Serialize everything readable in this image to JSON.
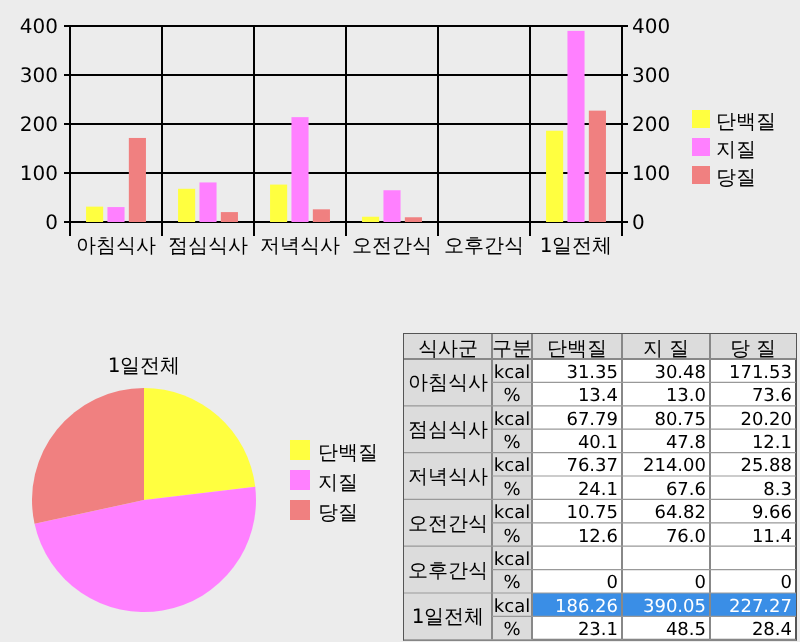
{
  "chart_data": [
    {
      "type": "bar",
      "categories": [
        "아침식사",
        "점심식사",
        "저녁식사",
        "오전간식",
        "오후간식",
        "1일전체"
      ],
      "series": [
        {
          "name": "단백질",
          "color": "#ffff40",
          "values": [
            31.35,
            67.79,
            76.37,
            10.75,
            null,
            186.26
          ]
        },
        {
          "name": "지질",
          "color": "#ff80ff",
          "values": [
            30.48,
            80.75,
            214.0,
            64.82,
            null,
            390.05
          ]
        },
        {
          "name": "당질",
          "color": "#f08080",
          "values": [
            171.53,
            20.2,
            25.88,
            9.66,
            null,
            227.27
          ]
        }
      ],
      "ylim": [
        0,
        400
      ],
      "yticks": [
        0,
        100,
        200,
        300,
        400
      ],
      "y2lim": [
        0,
        400
      ],
      "y2ticks": [
        0,
        100,
        200,
        300,
        400
      ],
      "grid": true,
      "legend": "right"
    },
    {
      "type": "pie",
      "title": "1일전체",
      "categories": [
        "단백질",
        "지질",
        "당질"
      ],
      "values": [
        23.1,
        48.5,
        28.4
      ],
      "colors": [
        "#ffff40",
        "#ff80ff",
        "#f08080"
      ],
      "legend": "right"
    },
    {
      "type": "other",
      "categories": [
        "식사군",
        "구분",
        "단백질",
        "지 질",
        "당 질"
      ],
      "y_categories": [
        "아침식사",
        "점심식사",
        "저녁식사",
        "오전간식",
        "오후간식",
        "1일전체"
      ],
      "cell_labels": [
        [
          "kcal",
          "31.35",
          "30.48",
          "171.53"
        ],
        [
          "%",
          "13.4",
          "13.0",
          "73.6"
        ],
        [
          "kcal",
          "67.79",
          "80.75",
          "20.20"
        ],
        [
          "%",
          "40.1",
          "47.8",
          "12.1"
        ],
        [
          "kcal",
          "76.37",
          "214.00",
          "25.88"
        ],
        [
          "%",
          "24.1",
          "67.6",
          "8.3"
        ],
        [
          "kcal",
          "10.75",
          "64.82",
          "9.66"
        ],
        [
          "%",
          "12.6",
          "76.0",
          "11.4"
        ],
        [
          "kcal",
          null,
          null,
          null
        ],
        [
          "%",
          "0",
          "0",
          "0"
        ],
        [
          "kcal",
          "186.26",
          "390.05",
          "227.27"
        ],
        [
          "%",
          "23.1",
          "48.5",
          "28.4"
        ]
      ]
    }
  ]
}
